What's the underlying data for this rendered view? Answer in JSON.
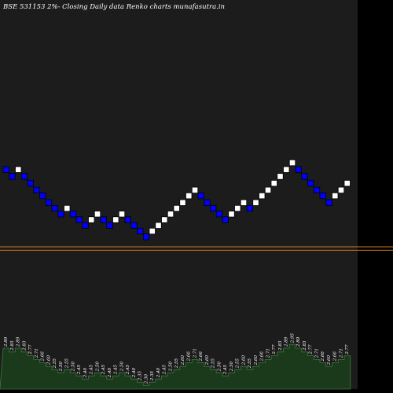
{
  "chart_data": {
    "type": "renko",
    "title": "BSE 531153 2%-  Closing Daily data  Renko  charts munafasutra.in",
    "background": "#000000",
    "plot_background": "#1c1c1c",
    "up_color": "#ffffff",
    "down_color": "#0000ff",
    "level_line_color": "#d2791e",
    "volume_fill_color": "#1b3a1b",
    "volume_line_color": "#3c7a3c",
    "level_lines": [
      2.19,
      2.16
    ],
    "bricks": [
      {
        "col": 0,
        "price": 2.89,
        "dir": "down"
      },
      {
        "col": 1,
        "price": 2.83,
        "dir": "down"
      },
      {
        "col": 2,
        "price": 2.89,
        "dir": "up"
      },
      {
        "col": 3,
        "price": 2.83,
        "dir": "down"
      },
      {
        "col": 4,
        "price": 2.77,
        "dir": "down"
      },
      {
        "col": 5,
        "price": 2.71,
        "dir": "down"
      },
      {
        "col": 6,
        "price": 2.66,
        "dir": "down"
      },
      {
        "col": 7,
        "price": 2.6,
        "dir": "down"
      },
      {
        "col": 8,
        "price": 2.55,
        "dir": "down"
      },
      {
        "col": 9,
        "price": 2.5,
        "dir": "down"
      },
      {
        "col": 10,
        "price": 2.55,
        "dir": "up"
      },
      {
        "col": 11,
        "price": 2.5,
        "dir": "down"
      },
      {
        "col": 12,
        "price": 2.45,
        "dir": "down"
      },
      {
        "col": 13,
        "price": 2.4,
        "dir": "down"
      },
      {
        "col": 14,
        "price": 2.45,
        "dir": "up"
      },
      {
        "col": 15,
        "price": 2.5,
        "dir": "up"
      },
      {
        "col": 16,
        "price": 2.45,
        "dir": "down"
      },
      {
        "col": 17,
        "price": 2.4,
        "dir": "down"
      },
      {
        "col": 18,
        "price": 2.45,
        "dir": "up"
      },
      {
        "col": 19,
        "price": 2.5,
        "dir": "up"
      },
      {
        "col": 20,
        "price": 2.45,
        "dir": "down"
      },
      {
        "col": 21,
        "price": 2.4,
        "dir": "down"
      },
      {
        "col": 22,
        "price": 2.35,
        "dir": "down"
      },
      {
        "col": 23,
        "price": 2.3,
        "dir": "down"
      },
      {
        "col": 24,
        "price": 2.35,
        "dir": "up"
      },
      {
        "col": 25,
        "price": 2.4,
        "dir": "up"
      },
      {
        "col": 26,
        "price": 2.45,
        "dir": "up"
      },
      {
        "col": 27,
        "price": 2.5,
        "dir": "up"
      },
      {
        "col": 28,
        "price": 2.55,
        "dir": "up"
      },
      {
        "col": 29,
        "price": 2.6,
        "dir": "up"
      },
      {
        "col": 30,
        "price": 2.66,
        "dir": "up"
      },
      {
        "col": 31,
        "price": 2.71,
        "dir": "up"
      },
      {
        "col": 32,
        "price": 2.66,
        "dir": "down"
      },
      {
        "col": 33,
        "price": 2.6,
        "dir": "down"
      },
      {
        "col": 34,
        "price": 2.55,
        "dir": "down"
      },
      {
        "col": 35,
        "price": 2.5,
        "dir": "down"
      },
      {
        "col": 36,
        "price": 2.45,
        "dir": "down"
      },
      {
        "col": 37,
        "price": 2.5,
        "dir": "up"
      },
      {
        "col": 38,
        "price": 2.55,
        "dir": "up"
      },
      {
        "col": 39,
        "price": 2.6,
        "dir": "up"
      },
      {
        "col": 40,
        "price": 2.55,
        "dir": "down"
      },
      {
        "col": 41,
        "price": 2.6,
        "dir": "up"
      },
      {
        "col": 42,
        "price": 2.66,
        "dir": "up"
      },
      {
        "col": 43,
        "price": 2.71,
        "dir": "up"
      },
      {
        "col": 44,
        "price": 2.77,
        "dir": "up"
      },
      {
        "col": 45,
        "price": 2.83,
        "dir": "up"
      },
      {
        "col": 46,
        "price": 2.89,
        "dir": "up"
      },
      {
        "col": 47,
        "price": 2.95,
        "dir": "up"
      },
      {
        "col": 48,
        "price": 2.89,
        "dir": "down"
      },
      {
        "col": 49,
        "price": 2.83,
        "dir": "down"
      },
      {
        "col": 50,
        "price": 2.77,
        "dir": "down"
      },
      {
        "col": 51,
        "price": 2.71,
        "dir": "down"
      },
      {
        "col": 52,
        "price": 2.66,
        "dir": "down"
      },
      {
        "col": 53,
        "price": 2.6,
        "dir": "down"
      },
      {
        "col": 54,
        "price": 2.66,
        "dir": "up"
      },
      {
        "col": 55,
        "price": 2.71,
        "dir": "up"
      },
      {
        "col": 56,
        "price": 2.77,
        "dir": "up"
      }
    ],
    "volume_labels": [
      "2.89",
      "2.83",
      "2.89",
      "2.83",
      "2.77",
      "2.71",
      "2.66",
      "2.60",
      "2.55",
      "2.50",
      "2.55",
      "2.50",
      "2.45",
      "2.40",
      "2.45",
      "2.50",
      "2.45",
      "2.40",
      "2.45",
      "2.50",
      "2.45",
      "2.40",
      "2.35",
      "2.30",
      "2.35",
      "2.40",
      "2.45",
      "2.50",
      "2.55",
      "2.60",
      "2.66",
      "2.71",
      "2.66",
      "2.60",
      "2.55",
      "2.50",
      "2.45",
      "2.50",
      "2.55",
      "2.60",
      "2.55",
      "2.60",
      "2.66",
      "2.71",
      "2.77",
      "2.83",
      "2.89",
      "2.95",
      "2.89",
      "2.83",
      "2.77",
      "2.71",
      "2.66",
      "2.60",
      "2.66",
      "2.71",
      "2.77"
    ]
  }
}
